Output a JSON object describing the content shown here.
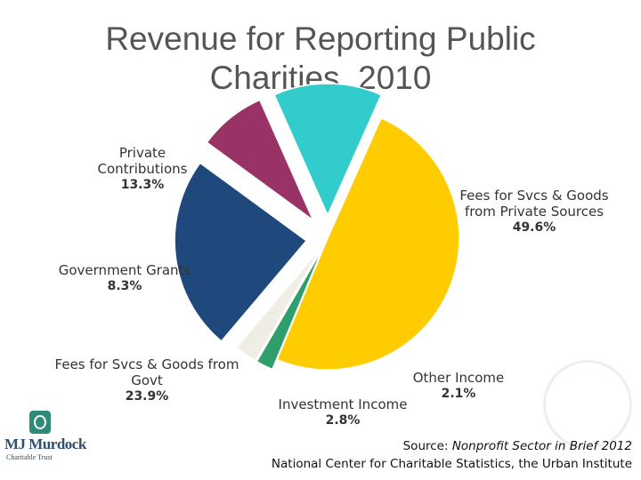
{
  "title_line1": "Revenue for Reporting Public",
  "title_line2": "Charities, 2010",
  "chart_data": {
    "type": "pie",
    "title": "Revenue for Reporting Public Charities, 2010",
    "start_angle_deg": -66,
    "slices": [
      {
        "label": "Fees for Svcs & Goods from Private Sources",
        "value": 49.6,
        "pct_label": "49.6%",
        "color": "#FFCC00",
        "explode": 0
      },
      {
        "label": "Other Income",
        "value": 2.1,
        "pct_label": "2.1%",
        "color": "#2E9E6B",
        "explode": 12
      },
      {
        "label": "Investment Income",
        "value": 2.8,
        "pct_label": "2.8%",
        "color": "#F0EEE4",
        "explode": 12
      },
      {
        "label": "Fees for Svcs & Goods from Govt",
        "value": 23.9,
        "pct_label": "23.9%",
        "color": "#1F487C",
        "explode": 24
      },
      {
        "label": "Government Grants",
        "value": 8.3,
        "pct_label": "8.3%",
        "color": "#993366",
        "explode": 26
      },
      {
        "label": "Private Contributions",
        "value": 13.3,
        "pct_label": "13.3%",
        "color": "#33CCCC",
        "explode": 26
      }
    ]
  },
  "labels": {
    "private_contributions": {
      "name_l1": "Private",
      "name_l2": "Contributions",
      "pct": "13.3%"
    },
    "fees_private": {
      "name_l1": "Fees for Svcs & Goods",
      "name_l2": "from Private Sources",
      "pct": "49.6%"
    },
    "government_grants": {
      "name_l1": "Government Grants",
      "pct": "8.3%"
    },
    "fees_govt": {
      "name_l1": "Fees for Svcs & Goods from",
      "name_l2": "Govt",
      "pct": "23.9%"
    },
    "investment_income": {
      "name_l1": "Investment Income",
      "pct": "2.8%"
    },
    "other_income": {
      "name_l1": "Other Income",
      "pct": "2.1%"
    }
  },
  "source": {
    "prefix": "Source: ",
    "publication": "Nonprofit Sector in Brief 2012",
    "line2": "National Center for Charitable Statistics, the Urban Institute"
  },
  "logo": {
    "name": "MJ Murdock",
    "sub": "Charitable Trust"
  }
}
